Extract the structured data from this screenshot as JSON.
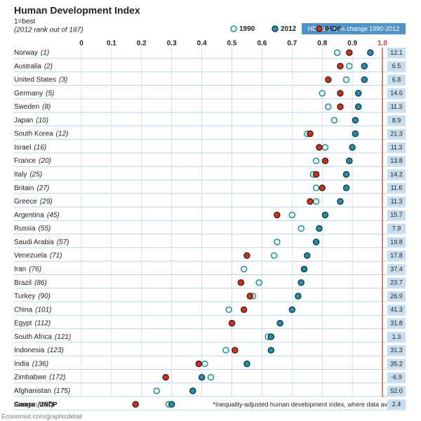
{
  "chart_data": {
    "type": "dot",
    "title": "Human Development Index",
    "subtitle": "1=best",
    "note": "(2012 rank out of 187)",
    "categories": [
      "Norway",
      "Australia",
      "United States",
      "Germany",
      "Sweden",
      "Japan",
      "South Korea",
      "Israel",
      "France",
      "Italy",
      "Britain",
      "Greece",
      "Argentina",
      "Russia",
      "Saudi Arabia",
      "Venezuela",
      "Iran",
      "Brazil",
      "Turkey",
      "China",
      "Egypt",
      "South Africa",
      "Indonesia",
      "India",
      "Zimbabwe",
      "Afghanistan",
      "Congo"
    ],
    "ranks": [
      "(1)",
      "(2)",
      "(3)",
      "(5)",
      "(8)",
      "(10)",
      "(12)",
      "(16)",
      "(20)",
      "(25)",
      "(27)",
      "(29)",
      "(45)",
      "(55)",
      "(57)",
      "(71)",
      "(76)",
      "(86)",
      "(90)",
      "(101)",
      "(112)",
      "(121)",
      "(123)",
      "(136)",
      "(172)",
      "(175)",
      "(187)"
    ],
    "series": [
      {
        "name": "1990",
        "color": "#2a8f8f",
        "fill": "#e8f4f0",
        "values": [
          0.85,
          0.89,
          0.88,
          0.8,
          0.82,
          0.84,
          0.75,
          0.81,
          0.78,
          0.77,
          0.78,
          0.78,
          0.7,
          0.73,
          0.65,
          0.64,
          0.54,
          0.59,
          0.57,
          0.49,
          0.5,
          0.62,
          0.48,
          0.41,
          0.43,
          0.25,
          0.29
        ]
      },
      {
        "name": "2012",
        "color": "#10404f",
        "fill": "#2b8fa6",
        "values": [
          0.96,
          0.94,
          0.94,
          0.92,
          0.92,
          0.91,
          0.91,
          0.9,
          0.89,
          0.88,
          0.88,
          0.86,
          0.81,
          0.79,
          0.78,
          0.75,
          0.74,
          0.73,
          0.72,
          0.7,
          0.66,
          0.63,
          0.63,
          0.55,
          0.4,
          0.37,
          0.3
        ]
      },
      {
        "name": "IHDI*",
        "color": "#5a1a10",
        "fill": "#c0392b",
        "values": [
          0.89,
          0.86,
          0.82,
          0.86,
          0.86,
          null,
          0.76,
          0.79,
          0.81,
          0.78,
          0.8,
          0.76,
          0.65,
          null,
          null,
          0.55,
          null,
          0.53,
          0.56,
          0.54,
          0.5,
          null,
          0.51,
          0.39,
          0.28,
          null,
          0.18
        ]
      }
    ],
    "change": {
      "name": "HDI score, % change 1990-2012",
      "color": "#c5ddef",
      "values": [
        12.1,
        6.5,
        6.8,
        14.6,
        11.3,
        8.9,
        21.3,
        11.3,
        13.8,
        14.2,
        11.6,
        11.3,
        15.7,
        7.9,
        19.8,
        17.8,
        37.4,
        23.7,
        26.9,
        41.3,
        31.8,
        1.3,
        31.3,
        35.2,
        -6.9,
        52.0,
        2.4
      ],
      "value_labels": [
        "12.1",
        "6.5",
        "6.8",
        "14.6",
        "11.3",
        "8.9",
        "21.3",
        "11.3",
        "13.8",
        "14.2",
        "11.6",
        "11.3",
        "15.7",
        "7.9",
        "19.8",
        "17.8",
        "37.4",
        "23.7",
        "26.9",
        "41.3",
        "31.8",
        "1.3",
        "31.3",
        "35.2",
        "-6.9",
        "52.0",
        "2.4"
      ]
    },
    "xlim": [
      0,
      1
    ],
    "xticks": [
      0,
      0.1,
      0.2,
      0.3,
      0.4,
      0.5,
      0.6,
      0.7,
      0.8,
      0.9,
      {
        "value": 1,
        "label": "1.0"
      }
    ],
    "grid": true,
    "source": "Source: UNDP",
    "footnote": "*Inequality-adjusted human development index, where data available",
    "credit": "Economist.com/graphicdetail"
  }
}
